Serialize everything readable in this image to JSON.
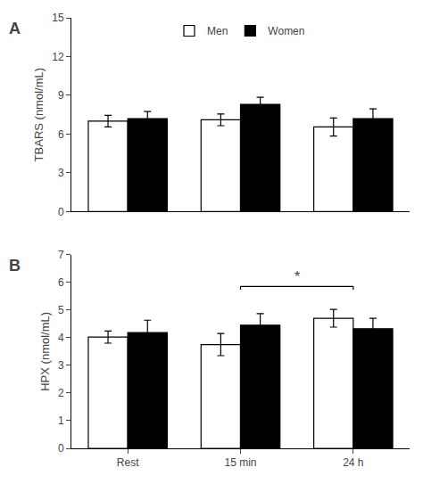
{
  "chart_data": [
    {
      "type": "bar",
      "title": "A",
      "ylabel": "TBARS (nmol/mL)",
      "categories": [
        "Rest",
        "15 min",
        "24 h"
      ],
      "series": [
        {
          "name": "Men",
          "color": "#ffffff",
          "values": [
            7.0,
            7.1,
            6.55
          ],
          "errors": [
            0.45,
            0.45,
            0.7
          ]
        },
        {
          "name": "Women",
          "color": "#000000",
          "values": [
            7.2,
            8.3,
            7.2
          ],
          "errors": [
            0.55,
            0.55,
            0.75
          ]
        }
      ],
      "ylim": [
        0,
        15
      ],
      "yticks": [
        0,
        3,
        6,
        9,
        12,
        15
      ],
      "grid": false,
      "legend": "top",
      "tick_labels": "y"
    },
    {
      "type": "bar",
      "title": "B",
      "ylabel": "HPX (nmol/mL)",
      "categories": [
        "Rest",
        "15 min",
        "24 h"
      ],
      "series": [
        {
          "name": "Men",
          "color": "#ffffff",
          "values": [
            4.02,
            3.75,
            4.7
          ],
          "errors": [
            0.22,
            0.4,
            0.32
          ]
        },
        {
          "name": "Women",
          "color": "#000000",
          "values": [
            4.18,
            4.45,
            4.32
          ],
          "errors": [
            0.45,
            0.42,
            0.38
          ]
        }
      ],
      "ylim": [
        0,
        7
      ],
      "yticks": [
        0,
        1,
        2,
        3,
        4,
        5,
        6,
        7
      ],
      "grid": false,
      "legend": false,
      "annotations": [
        {
          "type": "bracket",
          "from": "15 min",
          "to": "24 h",
          "y": 5.85,
          "text": "*"
        }
      ]
    }
  ]
}
